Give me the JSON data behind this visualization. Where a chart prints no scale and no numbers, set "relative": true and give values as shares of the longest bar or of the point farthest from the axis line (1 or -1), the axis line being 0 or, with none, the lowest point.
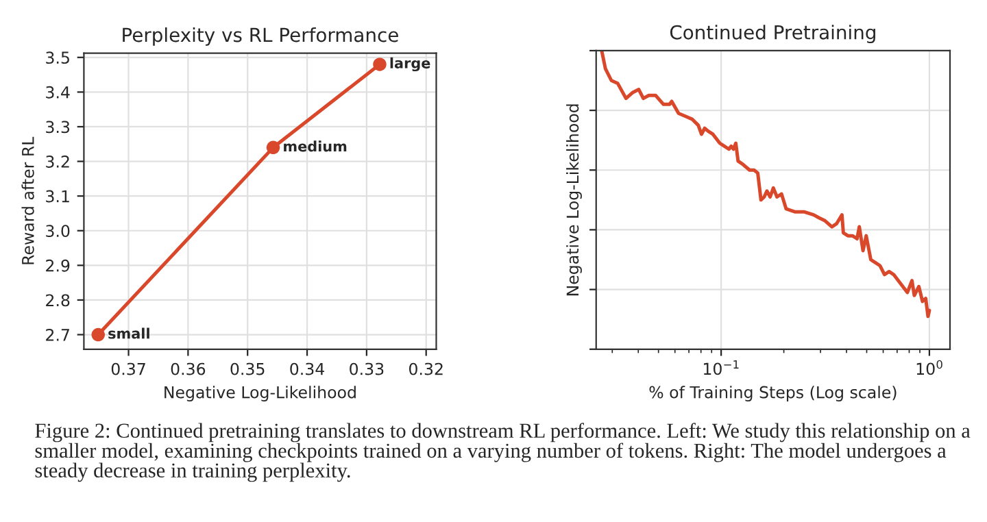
{
  "chart_data": [
    {
      "type": "line",
      "title": "Perplexity vs RL Performance",
      "xlabel": "Negative Log-Likelihood",
      "ylabel": "Reward after RL",
      "x": [
        0.3751,
        0.3457,
        0.3278
      ],
      "series": [
        {
          "color": "#d9482b",
          "values": [
            2.7,
            3.24,
            3.48
          ]
        }
      ],
      "marker": "circle",
      "line_style": "solid",
      "grid": true,
      "xlim": [
        0.3775,
        0.3183
      ],
      "xticks": [
        0.37,
        0.36,
        0.35,
        0.34,
        0.33,
        0.32
      ],
      "ylim": [
        2.658,
        3.512
      ],
      "yticks": [
        2.7,
        2.8,
        2.9,
        {
          "value": 3.0,
          "label": "3.0"
        },
        3.1,
        3.2,
        3.3,
        3.4,
        3.5
      ],
      "annotations": [
        {
          "text": "small",
          "x": 0.3751,
          "y": 2.7
        },
        {
          "text": "medium",
          "x": 0.3457,
          "y": 3.24
        },
        {
          "text": "large",
          "x": 0.3278,
          "y": 3.48
        },
        "Figure 2: Continued pretraining translates to downstream RL performance. Left: We study this relationship on a smaller model, examining checkpoints trained on a varying number of tokens. Right: The model undergoes a steady decrease in training perplexity."
      ]
    },
    {
      "type": "line",
      "title": "Continued Pretraining",
      "xlabel": "% of Training Steps (Log scale)",
      "ylabel": "Negative Log-Likelihood",
      "relative": true,
      "log": "x",
      "grid": true,
      "tick_labels": "x",
      "line_style": "solid",
      "xlim": [
        0.0251,
        1.256
      ],
      "xticks": [
        {
          "value": 0.1,
          "label": "10$^{−1}$"
        },
        {
          "value": 1,
          "label": "10$^{0}$"
        }
      ],
      "x": [
        0.02669,
        0.0278,
        0.0297,
        0.03188,
        0.03491,
        0.03765,
        0.04021,
        0.0423,
        0.04494,
        0.04849,
        0.05285,
        0.05645,
        0.0579,
        0.06246,
        0.06739,
        0.0727,
        0.07765,
        0.08045,
        0.08334,
        0.08679,
        0.09129,
        0.09849,
        0.1036,
        0.109,
        0.1118,
        0.1146,
        0.1176,
        0.1206,
        0.1268,
        0.1369,
        0.1439,
        0.1499,
        0.1553,
        0.1609,
        0.1659,
        0.1719,
        0.1781,
        0.1854,
        0.195,
        0.2052,
        0.227,
        0.2512,
        0.278,
        0.2953,
        0.3155,
        0.3404,
        0.358,
        0.3804,
        0.3862,
        0.4062,
        0.4273,
        0.4494,
        0.4609,
        0.48,
        0.4973,
        0.5232,
        0.5504,
        0.5788,
        0.6088,
        0.6405,
        0.6738,
        0.7086,
        0.7455,
        0.7843,
        0.825,
        0.8463,
        0.8904,
        0.9269,
        0.9603,
        0.985,
        1.0
      ],
      "series": [
        {
          "color": "#d9482b",
          "values": [
            1.0,
            0.94,
            0.9,
            0.89,
            0.84,
            0.86,
            0.87,
            0.84,
            0.85,
            0.85,
            0.82,
            0.82,
            0.83,
            0.79,
            0.78,
            0.77,
            0.75,
            0.72,
            0.74,
            0.73,
            0.72,
            0.69,
            0.68,
            0.67,
            0.68,
            0.67,
            0.69,
            0.63,
            0.62,
            0.6,
            0.6,
            0.59,
            0.5,
            0.51,
            0.53,
            0.51,
            0.54,
            0.51,
            0.52,
            0.47,
            0.46,
            0.46,
            0.45,
            0.44,
            0.43,
            0.41,
            0.42,
            0.45,
            0.39,
            0.38,
            0.38,
            0.37,
            0.41,
            0.33,
            0.38,
            0.3,
            0.29,
            0.28,
            0.25,
            0.26,
            0.25,
            0.23,
            0.21,
            0.19,
            0.23,
            0.18,
            0.21,
            0.16,
            0.17,
            0.11,
            0.13
          ]
        }
      ]
    }
  ]
}
